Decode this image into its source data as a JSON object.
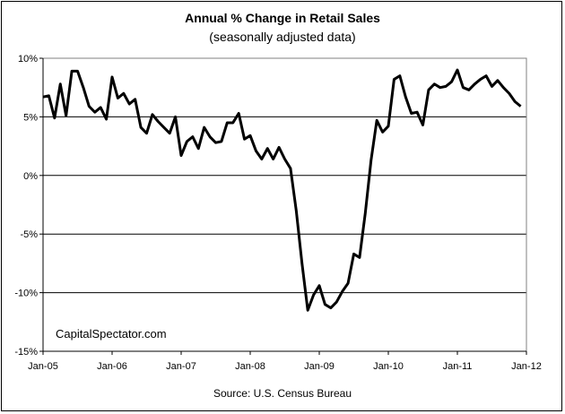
{
  "chart_data": {
    "type": "line",
    "title": "Annual %  Change in Retail Sales",
    "subtitle": "(seasonally adjusted data)",
    "source": "Source: U.S. Census Bureau",
    "watermark": "CapitalSpectator.com",
    "ylim": [
      -15,
      10
    ],
    "y_ticks": [
      10,
      5,
      0,
      -5,
      -10,
      -15
    ],
    "y_tick_labels": [
      "10%",
      "5%",
      "0%",
      "-5%",
      "-10%",
      "-15%"
    ],
    "x_tick_labels": [
      "Jan-05",
      "Jan-06",
      "Jan-07",
      "Jan-08",
      "Jan-09",
      "Jan-10",
      "Jan-11",
      "Jan-12"
    ],
    "grid": "horizontal",
    "line_color": "#000000",
    "x": [
      "Jan-05",
      "Feb-05",
      "Mar-05",
      "Apr-05",
      "May-05",
      "Jun-05",
      "Jul-05",
      "Aug-05",
      "Sep-05",
      "Oct-05",
      "Nov-05",
      "Dec-05",
      "Jan-06",
      "Feb-06",
      "Mar-06",
      "Apr-06",
      "May-06",
      "Jun-06",
      "Jul-06",
      "Aug-06",
      "Sep-06",
      "Oct-06",
      "Nov-06",
      "Dec-06",
      "Jan-07",
      "Feb-07",
      "Mar-07",
      "Apr-07",
      "May-07",
      "Jun-07",
      "Jul-07",
      "Aug-07",
      "Sep-07",
      "Oct-07",
      "Nov-07",
      "Dec-07",
      "Jan-08",
      "Feb-08",
      "Mar-08",
      "Apr-08",
      "May-08",
      "Jun-08",
      "Jul-08",
      "Aug-08",
      "Sep-08",
      "Oct-08",
      "Nov-08",
      "Dec-08",
      "Jan-09",
      "Feb-09",
      "Mar-09",
      "Apr-09",
      "May-09",
      "Jun-09",
      "Jul-09",
      "Aug-09",
      "Sep-09",
      "Oct-09",
      "Nov-09",
      "Dec-09",
      "Jan-10",
      "Feb-10",
      "Mar-10",
      "Apr-10",
      "May-10",
      "Jun-10",
      "Jul-10",
      "Aug-10",
      "Sep-10",
      "Oct-10",
      "Nov-10",
      "Dec-10",
      "Jan-11",
      "Feb-11",
      "Mar-11",
      "Apr-11",
      "May-11",
      "Jun-11",
      "Jul-11",
      "Aug-11",
      "Sep-11",
      "Oct-11",
      "Nov-11",
      "Dec-11",
      "Jan-12"
    ],
    "values": [
      6.7,
      6.8,
      4.9,
      7.8,
      5.1,
      8.9,
      8.9,
      7.5,
      5.9,
      5.4,
      5.8,
      4.8,
      8.4,
      6.6,
      7.0,
      6.1,
      6.5,
      4.1,
      3.6,
      5.2,
      4.6,
      4.1,
      3.6,
      5.0,
      1.7,
      2.9,
      3.3,
      2.3,
      4.1,
      3.3,
      2.8,
      2.9,
      4.5,
      4.5,
      5.3,
      3.1,
      3.4,
      2.1,
      1.4,
      2.3,
      1.4,
      2.4,
      1.4,
      0.6,
      -3.0,
      -7.5,
      -11.5,
      -10.2,
      -9.4,
      -11.0,
      -11.3,
      -10.8,
      -9.9,
      -9.2,
      -6.7,
      -7.0,
      -3.2,
      1.3,
      4.7,
      3.7,
      4.2,
      8.2,
      8.5,
      6.7,
      5.3,
      5.4,
      4.3,
      7.3,
      7.8,
      7.5,
      7.6,
      8.0,
      9.0,
      7.5,
      7.3,
      7.8,
      8.2,
      8.5,
      7.6,
      8.1,
      7.5,
      7.0,
      6.3,
      5.9,
      null
    ]
  }
}
